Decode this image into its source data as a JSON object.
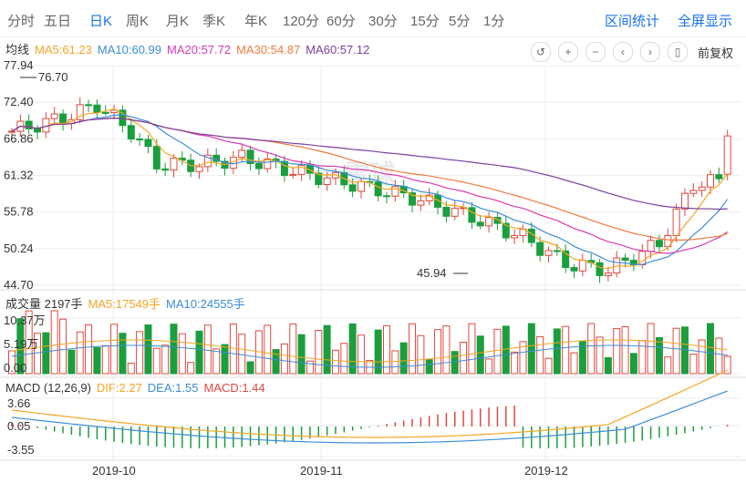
{
  "tabs": [
    "分时",
    "五日",
    "日K",
    "周K",
    "月K",
    "季K",
    "年K",
    "120分",
    "60分",
    "30分",
    "15分",
    "5分",
    "1分"
  ],
  "active_tab": "日K",
  "right_links": [
    "区间统计",
    "全屏显示"
  ],
  "controls": {
    "labels": [
      "↺",
      "+",
      "−",
      "‹",
      "›",
      "▯"
    ],
    "adjust": "前复权"
  },
  "ma_legend": {
    "title": "均线",
    "items": [
      {
        "text": "MA5:61.23",
        "color": "#f5a623"
      },
      {
        "text": "MA10:60.99",
        "color": "#3b8ed8"
      },
      {
        "text": "MA20:57.72",
        "color": "#d63bb5"
      },
      {
        "text": "MA30:54.87",
        "color": "#f07b3f"
      },
      {
        "text": "MA60:57.12",
        "color": "#7b3fa0"
      }
    ]
  },
  "vol_legend": {
    "title": "成交量 2197手",
    "items": [
      {
        "text": "MA5:17549手",
        "color": "#f5a623"
      },
      {
        "text": "MA10:24555手",
        "color": "#3b8ed8"
      }
    ]
  },
  "macd_legend": {
    "title": "MACD (12,26,9)",
    "items": [
      {
        "text": "DIF:2.27",
        "color": "#f5a623"
      },
      {
        "text": "DEA:1.55",
        "color": "#3b8ed8"
      },
      {
        "text": "MACD:1.44",
        "color": "#e0483f"
      }
    ]
  },
  "watermark": "雪球",
  "colors": {
    "up": "#e0483f",
    "down": "#1b9e3e",
    "grid": "#eeeeee"
  },
  "chart_data": {
    "type": "candlestick",
    "price_axis": {
      "ticks": [
        "77.94",
        "72.40",
        "66.86",
        "61.32",
        "55.78",
        "50.24",
        "44.70"
      ],
      "ylim": [
        44.7,
        77.94
      ]
    },
    "annotations": {
      "high": "76.70",
      "low": "45.94"
    },
    "volume_axis": {
      "ticks": [
        "10.37万",
        "5.19万",
        "0.00"
      ]
    },
    "macd_axis": {
      "ticks": [
        "3.66",
        "0.05",
        "-3.55"
      ],
      "ylim": [
        -3.55,
        3.66
      ]
    },
    "x_labels": [
      "2019-10",
      "2019-11",
      "2019-12"
    ]
  }
}
